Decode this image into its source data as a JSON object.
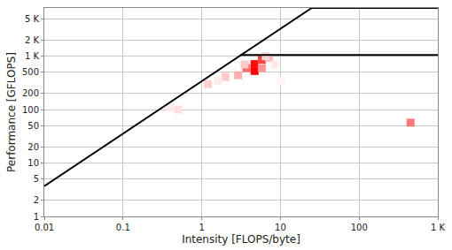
{
  "chart_data": {
    "type": "roofline",
    "x_label": "Intensity [FLOPS/byte]",
    "y_label": "Performance [GFLOPS]",
    "log": true,
    "grid": true,
    "xlim": [
      0.01,
      1000
    ],
    "ylim": [
      1,
      8000
    ],
    "xticks": [
      0.01,
      0.1,
      1,
      10,
      100,
      {
        "value": 1000,
        "label": "1 K"
      }
    ],
    "yticks": [
      1,
      2,
      5,
      10,
      20,
      50,
      100,
      200,
      500,
      {
        "value": 1000,
        "label": "1 K"
      },
      {
        "value": 2000,
        "label": "2 K"
      },
      {
        "value": 5000,
        "label": "5 K"
      }
    ],
    "lines": [
      {
        "x": [
          0.01,
          25,
          1000
        ],
        "y": [
          3.7,
          8000,
          8000
        ],
        "color": "#000000",
        "line_style": "solid"
      },
      {
        "x": [
          3.1,
          1000
        ],
        "y": [
          1050,
          1050
        ],
        "color": "#000000",
        "line_style": "solid"
      }
    ],
    "cells": {
      "color": "#ff0000",
      "x": [
        4.7,
        4.7,
        5.8,
        3.7,
        5.8,
        7.2,
        2.9,
        2.0,
        1.2,
        0.5,
        450,
        6.5,
        3.5,
        8.5,
        1.6,
        0.4,
        10
      ],
      "y": [
        530,
        710,
        860,
        600,
        600,
        930,
        440,
        410,
        300,
        100,
        57,
        1000,
        700,
        700,
        350,
        110,
        350
      ],
      "values": [
        95,
        90,
        70,
        55,
        40,
        25,
        30,
        20,
        18,
        12,
        50,
        15,
        20,
        8,
        8,
        8,
        4
      ]
    }
  }
}
